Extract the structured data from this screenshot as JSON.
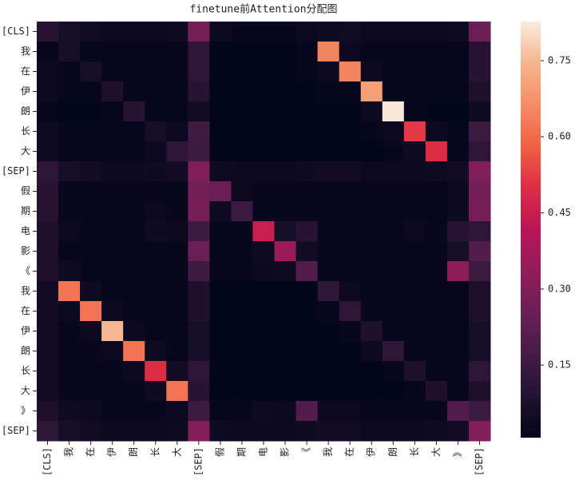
{
  "chart_data": {
    "type": "heatmap",
    "title": "finetune前Attention分配图",
    "x_categories": [
      "[CLS]",
      "我",
      "在",
      "伊",
      "朗",
      "长",
      "大",
      "[SEP]",
      "假",
      "期",
      "电",
      "影",
      "《",
      "我",
      "在",
      "伊",
      "朗",
      "长",
      "大",
      "》",
      "[SEP]"
    ],
    "y_categories": [
      "[CLS]",
      "我",
      "在",
      "伊",
      "朗",
      "长",
      "大",
      "[SEP]",
      "假",
      "期",
      "电",
      "影",
      "《",
      "我",
      "在",
      "伊",
      "朗",
      "长",
      "大",
      "》",
      "[SEP]"
    ],
    "values": [
      [
        0.1,
        0.06,
        0.05,
        0.03,
        0.03,
        0.03,
        0.04,
        0.28,
        0.03,
        0.02,
        0.02,
        0.02,
        0.03,
        0.04,
        0.05,
        0.03,
        0.03,
        0.03,
        0.03,
        0.04,
        0.25
      ],
      [
        0.02,
        0.06,
        0.02,
        0.02,
        0.02,
        0.02,
        0.02,
        0.12,
        0.01,
        0.01,
        0.01,
        0.01,
        0.02,
        0.65,
        0.03,
        0.02,
        0.02,
        0.02,
        0.02,
        0.02,
        0.1
      ],
      [
        0.03,
        0.02,
        0.06,
        0.02,
        0.02,
        0.02,
        0.02,
        0.12,
        0.01,
        0.01,
        0.01,
        0.01,
        0.02,
        0.03,
        0.65,
        0.03,
        0.02,
        0.02,
        0.02,
        0.02,
        0.1
      ],
      [
        0.03,
        0.02,
        0.02,
        0.08,
        0.02,
        0.02,
        0.02,
        0.1,
        0.01,
        0.01,
        0.01,
        0.01,
        0.01,
        0.02,
        0.02,
        0.7,
        0.02,
        0.02,
        0.02,
        0.02,
        0.08
      ],
      [
        0.02,
        0.01,
        0.01,
        0.02,
        0.1,
        0.02,
        0.02,
        0.05,
        0.01,
        0.01,
        0.01,
        0.01,
        0.01,
        0.01,
        0.01,
        0.03,
        0.82,
        0.02,
        0.01,
        0.01,
        0.04
      ],
      [
        0.04,
        0.02,
        0.02,
        0.02,
        0.02,
        0.06,
        0.03,
        0.16,
        0.01,
        0.01,
        0.01,
        0.01,
        0.01,
        0.01,
        0.01,
        0.02,
        0.03,
        0.52,
        0.03,
        0.02,
        0.15
      ],
      [
        0.04,
        0.02,
        0.02,
        0.02,
        0.02,
        0.03,
        0.12,
        0.15,
        0.01,
        0.01,
        0.01,
        0.01,
        0.01,
        0.01,
        0.01,
        0.01,
        0.02,
        0.04,
        0.5,
        0.02,
        0.12
      ],
      [
        0.12,
        0.06,
        0.05,
        0.03,
        0.03,
        0.04,
        0.05,
        0.3,
        0.04,
        0.03,
        0.03,
        0.03,
        0.04,
        0.05,
        0.05,
        0.03,
        0.03,
        0.03,
        0.04,
        0.05,
        0.3
      ],
      [
        0.1,
        0.02,
        0.02,
        0.02,
        0.02,
        0.02,
        0.02,
        0.27,
        0.25,
        0.03,
        0.02,
        0.02,
        0.02,
        0.02,
        0.02,
        0.02,
        0.02,
        0.02,
        0.02,
        0.03,
        0.27
      ],
      [
        0.1,
        0.02,
        0.02,
        0.02,
        0.02,
        0.03,
        0.02,
        0.28,
        0.04,
        0.15,
        0.02,
        0.02,
        0.02,
        0.02,
        0.02,
        0.02,
        0.02,
        0.02,
        0.02,
        0.03,
        0.28
      ],
      [
        0.08,
        0.03,
        0.02,
        0.02,
        0.02,
        0.04,
        0.03,
        0.15,
        0.02,
        0.02,
        0.45,
        0.06,
        0.1,
        0.02,
        0.02,
        0.02,
        0.02,
        0.03,
        0.02,
        0.1,
        0.12
      ],
      [
        0.08,
        0.02,
        0.02,
        0.02,
        0.02,
        0.02,
        0.02,
        0.25,
        0.02,
        0.02,
        0.04,
        0.35,
        0.05,
        0.02,
        0.02,
        0.02,
        0.02,
        0.02,
        0.02,
        0.06,
        0.2
      ],
      [
        0.08,
        0.04,
        0.02,
        0.02,
        0.02,
        0.02,
        0.02,
        0.15,
        0.02,
        0.02,
        0.03,
        0.04,
        0.2,
        0.02,
        0.02,
        0.02,
        0.02,
        0.02,
        0.02,
        0.32,
        0.15
      ],
      [
        0.05,
        0.62,
        0.04,
        0.02,
        0.02,
        0.02,
        0.02,
        0.08,
        0.01,
        0.01,
        0.01,
        0.01,
        0.01,
        0.12,
        0.03,
        0.02,
        0.02,
        0.02,
        0.02,
        0.02,
        0.08
      ],
      [
        0.05,
        0.03,
        0.62,
        0.03,
        0.02,
        0.02,
        0.02,
        0.08,
        0.01,
        0.01,
        0.01,
        0.01,
        0.01,
        0.02,
        0.12,
        0.02,
        0.02,
        0.02,
        0.02,
        0.02,
        0.08
      ],
      [
        0.05,
        0.02,
        0.03,
        0.75,
        0.03,
        0.02,
        0.02,
        0.06,
        0.01,
        0.01,
        0.01,
        0.01,
        0.01,
        0.01,
        0.02,
        0.08,
        0.02,
        0.02,
        0.02,
        0.02,
        0.06
      ],
      [
        0.05,
        0.02,
        0.02,
        0.03,
        0.62,
        0.04,
        0.02,
        0.06,
        0.01,
        0.01,
        0.01,
        0.01,
        0.01,
        0.01,
        0.01,
        0.03,
        0.12,
        0.02,
        0.02,
        0.02,
        0.06
      ],
      [
        0.05,
        0.02,
        0.02,
        0.02,
        0.03,
        0.5,
        0.05,
        0.12,
        0.01,
        0.01,
        0.01,
        0.01,
        0.01,
        0.01,
        0.01,
        0.01,
        0.02,
        0.08,
        0.02,
        0.02,
        0.12
      ],
      [
        0.05,
        0.02,
        0.02,
        0.02,
        0.02,
        0.04,
        0.62,
        0.1,
        0.01,
        0.01,
        0.01,
        0.01,
        0.01,
        0.01,
        0.01,
        0.01,
        0.01,
        0.02,
        0.08,
        0.02,
        0.08
      ],
      [
        0.08,
        0.04,
        0.03,
        0.02,
        0.02,
        0.02,
        0.03,
        0.15,
        0.02,
        0.02,
        0.04,
        0.03,
        0.2,
        0.03,
        0.03,
        0.02,
        0.02,
        0.02,
        0.02,
        0.2,
        0.15
      ],
      [
        0.12,
        0.06,
        0.05,
        0.03,
        0.03,
        0.03,
        0.04,
        0.3,
        0.04,
        0.03,
        0.03,
        0.03,
        0.04,
        0.05,
        0.05,
        0.03,
        0.03,
        0.03,
        0.04,
        0.05,
        0.3
      ]
    ],
    "clim": [
      0.007,
      0.827
    ],
    "cticks": [
      0.15,
      {
        "value": 0.3,
        "label": "0.30"
      },
      0.45,
      {
        "value": 0.6,
        "label": "0.60"
      },
      0.75
    ],
    "colormap": "rocket"
  }
}
